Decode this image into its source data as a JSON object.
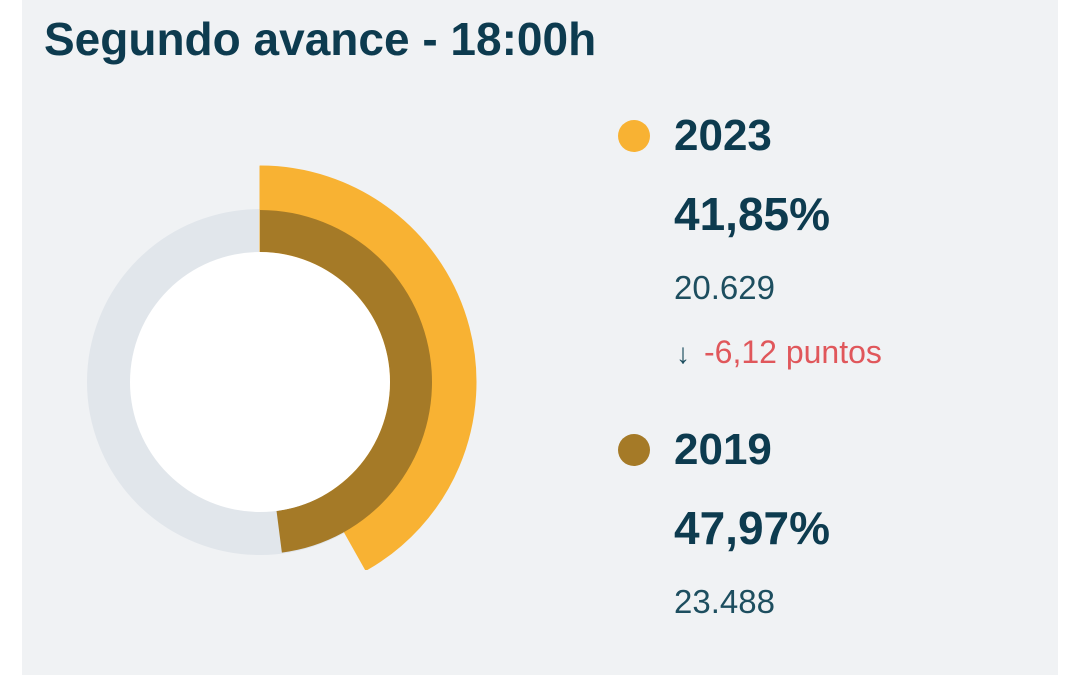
{
  "header": {
    "title": "Segundo avance - 18:00h"
  },
  "colors": {
    "series_2023": "#f8b233",
    "series_2019": "#a57a27",
    "track": "#e1e6eb",
    "center": "#ffffff",
    "negative": "#e0575b"
  },
  "chart_data": {
    "type": "pie",
    "title": "Segundo avance - 18:00h",
    "series": [
      {
        "name": "2023",
        "value": 41.85,
        "value_label": "41,85%",
        "count_label": "20.629",
        "change_label": "-6,12 puntos",
        "change_icon": "arrow-down-icon",
        "color": "#f8b233"
      },
      {
        "name": "2019",
        "value": 47.97,
        "value_label": "47,97%",
        "count_label": "23.488",
        "color": "#a57a27"
      }
    ],
    "scale_max": 100
  },
  "legend": {
    "items": [
      {
        "year": "2023",
        "percent": "41,85%",
        "count": "20.629",
        "change": "-6,12 puntos",
        "change_arrow": "↓"
      },
      {
        "year": "2019",
        "percent": "47,97%",
        "count": "23.488"
      }
    ]
  }
}
